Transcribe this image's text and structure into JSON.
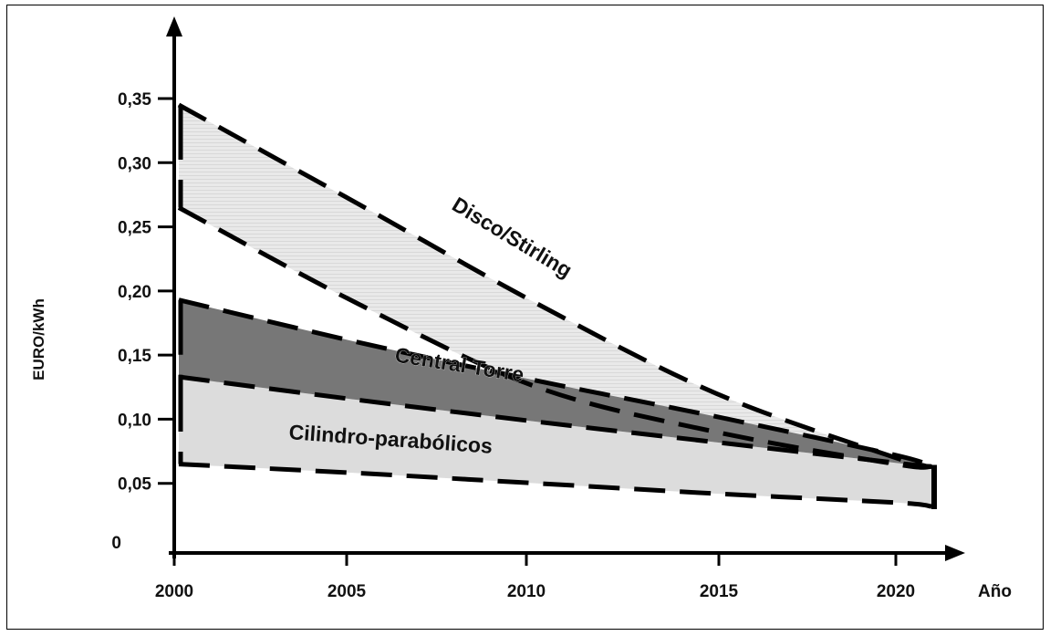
{
  "chart_data": {
    "type": "area",
    "title": "",
    "xlabel": "Año",
    "ylabel": "EURO/kWh",
    "xlim": [
      2000,
      2021
    ],
    "ylim": [
      0,
      0.35
    ],
    "x_ticks": [
      2000,
      2005,
      2010,
      2015,
      2020
    ],
    "x_tick_labels": [
      "2000",
      "2005",
      "2010",
      "2015",
      "2020"
    ],
    "y_ticks": [
      0,
      0.05,
      0.1,
      0.15,
      0.2,
      0.25,
      0.3,
      0.35
    ],
    "y_tick_labels": [
      "0",
      "0,05",
      "0,10",
      "0,15",
      "0,20",
      "0,25",
      "0,30",
      "0,35"
    ],
    "legend": "none",
    "grid": false,
    "series": [
      {
        "name": "Disco/Stirling",
        "fill": "#e6e6e6",
        "upper": {
          "x": [
            2000,
            2005,
            2010,
            2015,
            2020,
            2021
          ],
          "y": [
            0.345,
            0.268,
            0.19,
            0.12,
            0.07,
            0.063
          ]
        },
        "lower": {
          "x": [
            2000,
            2005,
            2010,
            2015,
            2020,
            2021
          ],
          "y": [
            0.265,
            0.19,
            0.125,
            0.09,
            0.065,
            0.063
          ]
        },
        "label_at": {
          "x": 2009.2,
          "y": 0.237,
          "angle": 31
        }
      },
      {
        "name": "Central Torre",
        "fill": "#777777",
        "upper": {
          "x": [
            2000,
            2005,
            2010,
            2015,
            2020,
            2021
          ],
          "y": [
            0.193,
            0.16,
            0.13,
            0.102,
            0.072,
            0.063
          ]
        },
        "lower": {
          "x": [
            2000,
            2005,
            2010,
            2015,
            2020,
            2021
          ],
          "y": [
            0.133,
            0.115,
            0.098,
            0.082,
            0.066,
            0.063
          ]
        },
        "label_at": {
          "x": 2007.8,
          "y": 0.137,
          "angle": 9
        }
      },
      {
        "name": "Cilindro-parabólicos",
        "fill": "#dcdcdc",
        "upper": {
          "x": [
            2000,
            2005,
            2010,
            2015,
            2020,
            2021
          ],
          "y": [
            0.133,
            0.115,
            0.098,
            0.082,
            0.066,
            0.063
          ]
        },
        "lower": {
          "x": [
            2000,
            2005,
            2010,
            2015,
            2020,
            2021
          ],
          "y": [
            0.065,
            0.058,
            0.05,
            0.042,
            0.035,
            0.032
          ]
        },
        "label_at": {
          "x": 2005.9,
          "y": 0.079,
          "angle": 4
        }
      }
    ]
  }
}
